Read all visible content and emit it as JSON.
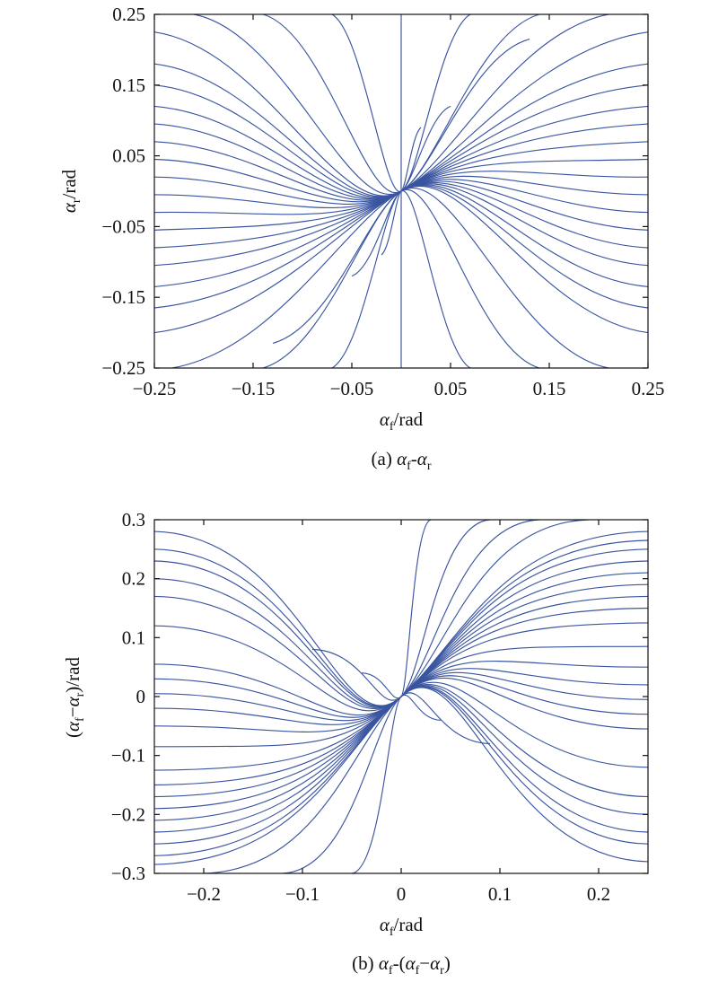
{
  "chart_data": [
    {
      "type": "line",
      "subtype": "phase-portrait",
      "caption": {
        "prefix": "(a)",
        "text": "αf-αr"
      },
      "xlabel": {
        "symbol": "α",
        "sub": "f",
        "unit": "/rad"
      },
      "ylabel": {
        "symbol": "α",
        "sub": "r",
        "unit": "/rad"
      },
      "xlim": [
        -0.25,
        0.25
      ],
      "ylim": [
        -0.25,
        0.25
      ],
      "xticks": [
        -0.25,
        -0.15,
        -0.05,
        0.05,
        0.15,
        0.25
      ],
      "xtick_labels": [
        "−0.25",
        "−0.15",
        "−0.05",
        "0.05",
        "0.15",
        "0.25"
      ],
      "yticks": [
        -0.25,
        -0.15,
        -0.05,
        0.05,
        0.15,
        0.25
      ],
      "ytick_labels": [
        "−0.25",
        "−0.15",
        "−0.05",
        "0.05",
        "0.15",
        "0.25"
      ],
      "grid": false,
      "line_color": "#3a55a0",
      "equilibrium": [
        0,
        0
      ],
      "series": [
        {
          "x": [
            -0.25,
            0.0
          ],
          "y": [
            0.225,
            0.0
          ]
        },
        {
          "x": [
            -0.25,
            0.0
          ],
          "y": [
            0.18,
            0.0
          ]
        },
        {
          "x": [
            -0.25,
            0.0
          ],
          "y": [
            0.15,
            0.0
          ]
        },
        {
          "x": [
            -0.25,
            0.0
          ],
          "y": [
            0.12,
            0.0
          ]
        },
        {
          "x": [
            -0.25,
            0.0
          ],
          "y": [
            0.095,
            0.0
          ]
        },
        {
          "x": [
            -0.25,
            0.0
          ],
          "y": [
            0.07,
            0.0
          ]
        },
        {
          "x": [
            -0.25,
            0.0
          ],
          "y": [
            0.045,
            0.0
          ]
        },
        {
          "x": [
            -0.25,
            0.0
          ],
          "y": [
            0.02,
            0.0
          ]
        },
        {
          "x": [
            -0.25,
            0.0
          ],
          "y": [
            -0.005,
            0.0
          ]
        },
        {
          "x": [
            -0.25,
            0.0
          ],
          "y": [
            -0.03,
            0.0
          ]
        },
        {
          "x": [
            -0.25,
            0.0
          ],
          "y": [
            -0.055,
            0.0
          ]
        },
        {
          "x": [
            -0.25,
            0.0
          ],
          "y": [
            -0.08,
            0.0
          ]
        },
        {
          "x": [
            -0.25,
            0.0
          ],
          "y": [
            -0.105,
            0.0
          ]
        },
        {
          "x": [
            -0.25,
            0.0
          ],
          "y": [
            -0.135,
            0.0
          ]
        },
        {
          "x": [
            -0.25,
            0.0
          ],
          "y": [
            -0.165,
            0.0
          ]
        },
        {
          "x": [
            -0.25,
            0.0
          ],
          "y": [
            -0.2,
            0.0
          ]
        },
        {
          "x": [
            -0.21,
            0.0
          ],
          "y": [
            0.25,
            0.0
          ]
        },
        {
          "x": [
            -0.14,
            0.0
          ],
          "y": [
            0.25,
            0.0
          ]
        },
        {
          "x": [
            -0.07,
            0.0
          ],
          "y": [
            0.25,
            0.0
          ]
        },
        {
          "x": [
            0.0,
            0.0
          ],
          "y": [
            0.25,
            0.0
          ]
        },
        {
          "x": [
            -0.232,
            0.0
          ],
          "y": [
            -0.25,
            0.0
          ]
        },
        {
          "x": [
            -0.14,
            0.0
          ],
          "y": [
            -0.25,
            0.0
          ]
        },
        {
          "x": [
            -0.07,
            0.0
          ],
          "y": [
            -0.25,
            0.0
          ]
        },
        {
          "x": [
            0.0,
            0.0
          ],
          "y": [
            -0.25,
            0.0
          ]
        },
        {
          "x": [
            0.07,
            0.0
          ],
          "y": [
            -0.25,
            0.0
          ]
        },
        {
          "x": [
            0.14,
            0.0
          ],
          "y": [
            -0.25,
            0.0
          ]
        },
        {
          "x": [
            0.21,
            0.0
          ],
          "y": [
            -0.25,
            0.0
          ]
        },
        {
          "x": [
            0.25,
            0.0
          ],
          "y": [
            -0.2,
            0.0
          ]
        },
        {
          "x": [
            0.25,
            0.0
          ],
          "y": [
            -0.165,
            0.0
          ]
        },
        {
          "x": [
            0.25,
            0.0
          ],
          "y": [
            -0.135,
            0.0
          ]
        },
        {
          "x": [
            0.25,
            0.0
          ],
          "y": [
            -0.105,
            0.0
          ]
        },
        {
          "x": [
            0.25,
            0.0
          ],
          "y": [
            -0.08,
            0.0
          ]
        },
        {
          "x": [
            0.25,
            0.0
          ],
          "y": [
            -0.055,
            0.0
          ]
        },
        {
          "x": [
            0.25,
            0.0
          ],
          "y": [
            -0.03,
            0.0
          ]
        },
        {
          "x": [
            0.25,
            0.0
          ],
          "y": [
            -0.005,
            0.0
          ]
        },
        {
          "x": [
            0.25,
            0.0
          ],
          "y": [
            0.02,
            0.0
          ]
        },
        {
          "x": [
            0.25,
            0.0
          ],
          "y": [
            0.045,
            0.0
          ]
        },
        {
          "x": [
            0.25,
            0.0
          ],
          "y": [
            0.07,
            0.0
          ]
        },
        {
          "x": [
            0.25,
            0.0
          ],
          "y": [
            0.095,
            0.0
          ]
        },
        {
          "x": [
            0.25,
            0.0
          ],
          "y": [
            0.12,
            0.0
          ]
        },
        {
          "x": [
            0.25,
            0.0
          ],
          "y": [
            0.15,
            0.0
          ]
        },
        {
          "x": [
            0.25,
            0.0
          ],
          "y": [
            0.18,
            0.0
          ]
        },
        {
          "x": [
            0.25,
            0.0
          ],
          "y": [
            0.225,
            0.0
          ]
        },
        {
          "x": [
            0.21,
            0.0
          ],
          "y": [
            0.25,
            0.0
          ]
        },
        {
          "x": [
            0.14,
            0.0
          ],
          "y": [
            0.25,
            0.0
          ]
        },
        {
          "x": [
            0.07,
            0.0
          ],
          "y": [
            0.25,
            0.0
          ]
        },
        {
          "x": [
            0.13,
            0.0
          ],
          "y": [
            0.215,
            0.0
          ]
        },
        {
          "x": [
            -0.13,
            0.0
          ],
          "y": [
            -0.215,
            0.0
          ]
        },
        {
          "x": [
            0.05,
            0.0
          ],
          "y": [
            0.12,
            0.0
          ]
        },
        {
          "x": [
            -0.05,
            0.0
          ],
          "y": [
            -0.12,
            0.0
          ]
        },
        {
          "x": [
            0.02,
            0.0
          ],
          "y": [
            0.09,
            0.0
          ]
        },
        {
          "x": [
            -0.02,
            0.0
          ],
          "y": [
            -0.09,
            0.0
          ]
        }
      ]
    },
    {
      "type": "line",
      "subtype": "phase-portrait",
      "caption": {
        "prefix": "(b)",
        "text": "αf-(αf−αr)"
      },
      "xlabel": {
        "symbol": "α",
        "sub": "f",
        "unit": "/rad"
      },
      "ylabel": {
        "symbol": "(αf−αr)",
        "unit": "/rad"
      },
      "xlim": [
        -0.25,
        0.25
      ],
      "ylim": [
        -0.3,
        0.3
      ],
      "xticks": [
        -0.2,
        -0.1,
        0,
        0.1,
        0.2
      ],
      "xtick_labels": [
        "−0.2",
        "−0.1",
        "0",
        "0.1",
        "0.2"
      ],
      "yticks": [
        -0.3,
        -0.2,
        -0.1,
        0,
        0.1,
        0.2,
        0.3
      ],
      "ytick_labels": [
        "−0.3",
        "−0.2",
        "−0.1",
        "0",
        "0.1",
        "0.2",
        "0.3"
      ],
      "grid": false,
      "line_color": "#3a55a0",
      "equilibrium": [
        0,
        0
      ],
      "series": [
        {
          "x": [
            -0.25,
            0.0
          ],
          "y": [
            0.28,
            0.0
          ]
        },
        {
          "x": [
            -0.25,
            0.0
          ],
          "y": [
            0.25,
            0.0
          ]
        },
        {
          "x": [
            -0.25,
            0.0
          ],
          "y": [
            0.23,
            0.0
          ]
        },
        {
          "x": [
            -0.25,
            0.0
          ],
          "y": [
            0.2,
            0.0
          ]
        },
        {
          "x": [
            -0.25,
            0.0
          ],
          "y": [
            0.17,
            0.0
          ]
        },
        {
          "x": [
            -0.25,
            0.0
          ],
          "y": [
            0.12,
            0.0
          ]
        },
        {
          "x": [
            -0.25,
            0.0
          ],
          "y": [
            0.055,
            0.0
          ]
        },
        {
          "x": [
            -0.25,
            0.0
          ],
          "y": [
            0.03,
            0.0
          ]
        },
        {
          "x": [
            -0.25,
            0.0
          ],
          "y": [
            0.005,
            0.0
          ]
        },
        {
          "x": [
            -0.25,
            0.0
          ],
          "y": [
            -0.02,
            0.0
          ]
        },
        {
          "x": [
            -0.25,
            0.0
          ],
          "y": [
            -0.05,
            0.0
          ]
        },
        {
          "x": [
            -0.25,
            0.0
          ],
          "y": [
            -0.085,
            0.0
          ]
        },
        {
          "x": [
            -0.25,
            0.0
          ],
          "y": [
            -0.125,
            0.0
          ]
        },
        {
          "x": [
            -0.25,
            0.0
          ],
          "y": [
            -0.15,
            0.0
          ]
        },
        {
          "x": [
            -0.25,
            0.0
          ],
          "y": [
            -0.17,
            0.0
          ]
        },
        {
          "x": [
            -0.25,
            0.0
          ],
          "y": [
            -0.19,
            0.0
          ]
        },
        {
          "x": [
            -0.25,
            0.0
          ],
          "y": [
            -0.21,
            0.0
          ]
        },
        {
          "x": [
            -0.25,
            0.0
          ],
          "y": [
            -0.23,
            0.0
          ]
        },
        {
          "x": [
            -0.25,
            0.0
          ],
          "y": [
            -0.25,
            0.0
          ]
        },
        {
          "x": [
            -0.25,
            0.0
          ],
          "y": [
            -0.27,
            0.0
          ]
        },
        {
          "x": [
            -0.25,
            0.0
          ],
          "y": [
            -0.285,
            0.0
          ]
        },
        {
          "x": [
            -0.2,
            0.0
          ],
          "y": [
            -0.3,
            0.0
          ]
        },
        {
          "x": [
            -0.12,
            0.0
          ],
          "y": [
            -0.3,
            0.0
          ]
        },
        {
          "x": [
            -0.05,
            0.0
          ],
          "y": [
            -0.3,
            0.0
          ]
        },
        {
          "x": [
            0.25,
            0.0
          ],
          "y": [
            0.28,
            0.0
          ]
        },
        {
          "x": [
            0.25,
            0.0
          ],
          "y": [
            0.265,
            0.0
          ]
        },
        {
          "x": [
            0.25,
            0.0
          ],
          "y": [
            0.25,
            0.0
          ]
        },
        {
          "x": [
            0.25,
            0.0
          ],
          "y": [
            0.23,
            0.0
          ]
        },
        {
          "x": [
            0.25,
            0.0
          ],
          "y": [
            0.21,
            0.0
          ]
        },
        {
          "x": [
            0.25,
            0.0
          ],
          "y": [
            0.19,
            0.0
          ]
        },
        {
          "x": [
            0.25,
            0.0
          ],
          "y": [
            0.17,
            0.0
          ]
        },
        {
          "x": [
            0.25,
            0.0
          ],
          "y": [
            0.15,
            0.0
          ]
        },
        {
          "x": [
            0.25,
            0.0
          ],
          "y": [
            0.125,
            0.0
          ]
        },
        {
          "x": [
            0.25,
            0.0
          ],
          "y": [
            0.085,
            0.0
          ]
        },
        {
          "x": [
            0.25,
            0.0
          ],
          "y": [
            0.05,
            0.0
          ]
        },
        {
          "x": [
            0.25,
            0.0
          ],
          "y": [
            0.02,
            0.0
          ]
        },
        {
          "x": [
            0.25,
            0.0
          ],
          "y": [
            -0.005,
            0.0
          ]
        },
        {
          "x": [
            0.25,
            0.0
          ],
          "y": [
            -0.03,
            0.0
          ]
        },
        {
          "x": [
            0.25,
            0.0
          ],
          "y": [
            -0.055,
            0.0
          ]
        },
        {
          "x": [
            0.25,
            0.0
          ],
          "y": [
            -0.12,
            0.0
          ]
        },
        {
          "x": [
            0.25,
            0.0
          ],
          "y": [
            -0.17,
            0.0
          ]
        },
        {
          "x": [
            0.25,
            0.0
          ],
          "y": [
            -0.2,
            0.0
          ]
        },
        {
          "x": [
            0.25,
            0.0
          ],
          "y": [
            -0.23,
            0.0
          ]
        },
        {
          "x": [
            0.25,
            0.0
          ],
          "y": [
            -0.25,
            0.0
          ]
        },
        {
          "x": [
            0.25,
            0.0
          ],
          "y": [
            -0.28,
            0.0
          ]
        },
        {
          "x": [
            0.03,
            0.0
          ],
          "y": [
            0.3,
            0.0
          ]
        },
        {
          "x": [
            0.09,
            0.0
          ],
          "y": [
            0.3,
            0.0
          ]
        },
        {
          "x": [
            0.14,
            0.0
          ],
          "y": [
            0.3,
            0.0
          ]
        },
        {
          "x": [
            0.19,
            0.0
          ],
          "y": [
            0.3,
            0.0
          ]
        },
        {
          "x": [
            -0.09,
            0.0
          ],
          "y": [
            0.08,
            0.0
          ]
        },
        {
          "x": [
            0.09,
            0.0
          ],
          "y": [
            -0.08,
            0.0
          ]
        },
        {
          "x": [
            -0.04,
            0.0
          ],
          "y": [
            0.04,
            0.0
          ]
        },
        {
          "x": [
            0.04,
            0.0
          ],
          "y": [
            -0.04,
            0.0
          ]
        }
      ]
    }
  ]
}
